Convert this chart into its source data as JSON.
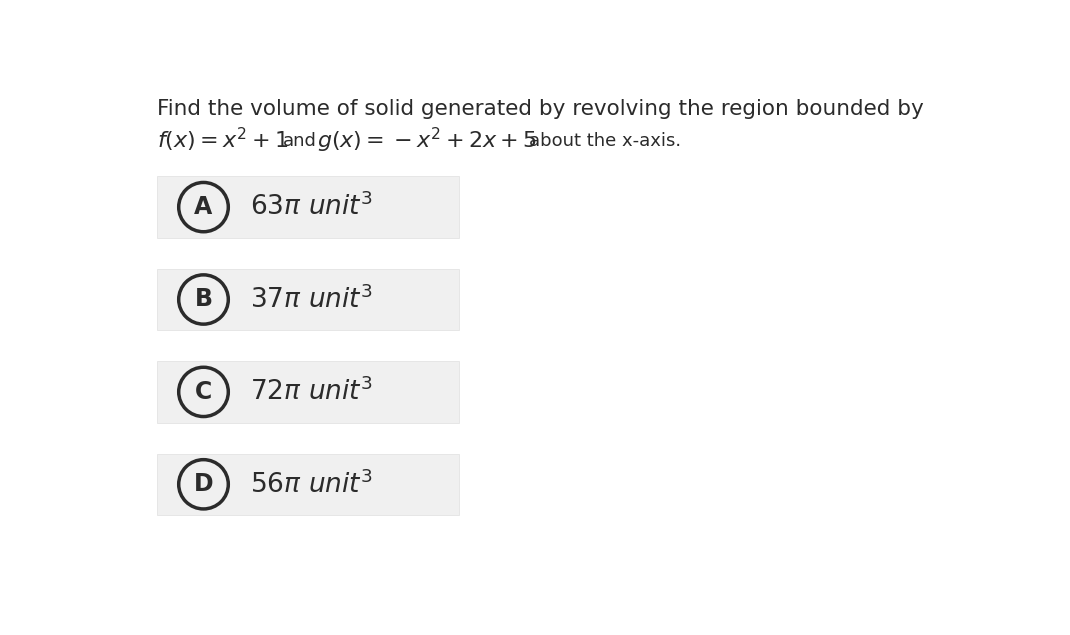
{
  "background_color": "#f5f5f5",
  "page_background": "#ffffff",
  "question_line1": "Find the volume of solid generated by revolving the region bounded by",
  "options": [
    {
      "label": "A",
      "value": "63",
      "text": "π unit"
    },
    {
      "label": "B",
      "value": "37",
      "text": "π unit"
    },
    {
      "label": "C",
      "value": "72",
      "text": "π unit"
    },
    {
      "label": "D",
      "value": "56",
      "text": "π unit"
    }
  ],
  "option_box_color": "#f0f0f0",
  "option_box_edge_color": "#e0e0e0",
  "text_color": "#2b2b2b",
  "circle_edge_color": "#2b2b2b",
  "font_size_question": 15.5,
  "font_size_formula": 16,
  "font_size_option_label": 17,
  "font_size_option_text": 19,
  "font_size_and": 13,
  "font_size_about": 13
}
